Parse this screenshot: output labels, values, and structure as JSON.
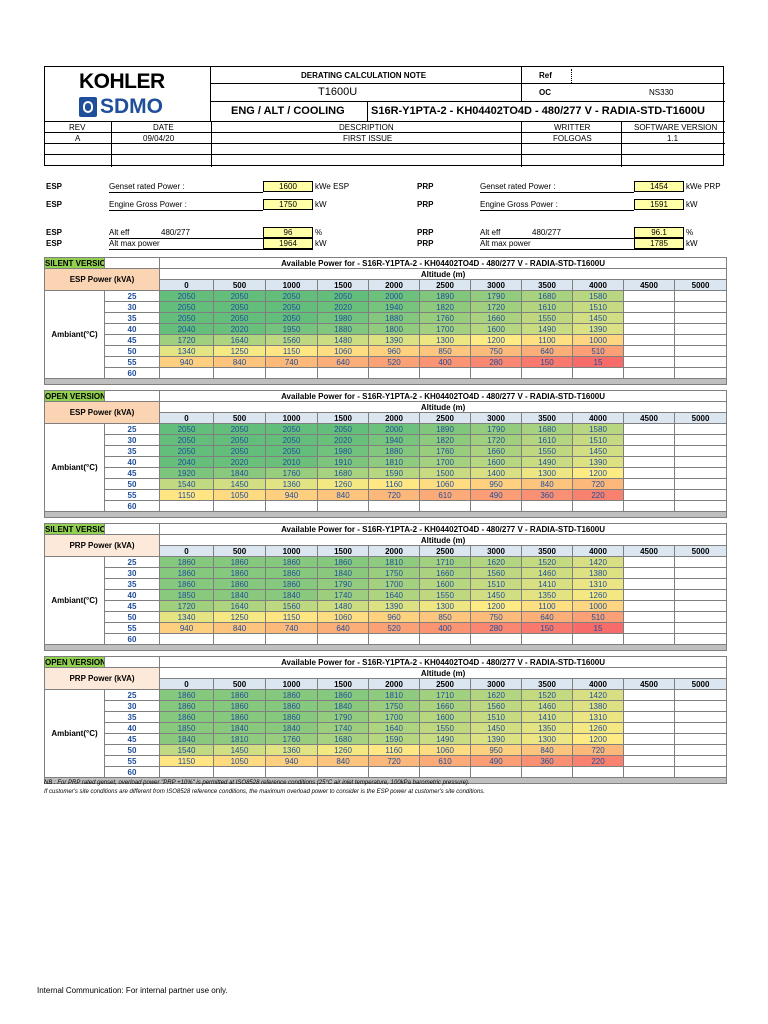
{
  "header": {
    "brand1": "KOHLER",
    "brand2": "SDMO",
    "doc_title": "DERATING CALCULATION NOTE",
    "ref_label": "Ref",
    "model": "T1600U",
    "oc_label": "OC",
    "oc_value": "NS330",
    "config_label": "ENG / ALT / COOLING",
    "config_value": "S16R-Y1PTA-2 - KH04402TO4D - 480/277 V - RADIA-STD-T1600U",
    "rev_label": "REV",
    "date_label": "DATE",
    "desc_label": "DESCRIPTION",
    "writer_label": "WRITTER",
    "sw_label": "SOFTWARE VERSION",
    "rev": "A",
    "date": "09/04/20",
    "desc": "FIRST ISSUE",
    "writer": "FOLGOAS",
    "sw": "1.1"
  },
  "params": {
    "esp": [
      {
        "tag": "ESP",
        "label": "Genset rated Power :",
        "sub": "",
        "value": "1600",
        "unit": "kWe ESP"
      },
      {
        "tag": "ESP",
        "label": "Engine Gross Power :",
        "sub": "",
        "value": "1750",
        "unit": "kW"
      },
      {
        "tag": "ESP",
        "label": "Alt eff",
        "sub": "480/277",
        "value": "96",
        "unit": "%"
      },
      {
        "tag": "ESP",
        "label": "Alt max power",
        "sub": "",
        "value": "1964",
        "unit": "kW"
      }
    ],
    "prp": [
      {
        "tag": "PRP",
        "label": "Genset rated Power :",
        "sub": "",
        "value": "1454",
        "unit": "kWe PRP"
      },
      {
        "tag": "PRP",
        "label": "Engine Gross Power :",
        "sub": "",
        "value": "1591",
        "unit": "kW"
      },
      {
        "tag": "PRP",
        "label": "Alt eff",
        "sub": "480/277",
        "value": "96.1",
        "unit": "%"
      },
      {
        "tag": "PRP",
        "label": "Alt max power",
        "sub": "",
        "value": "1785",
        "unit": "kW"
      }
    ]
  },
  "table_common": {
    "available_title": "Available Power for - S16R-Y1PTA-2 - KH04402TO4D - 480/277 V - RADIA-STD-T1600U",
    "altitude_label": "Altitude (m)",
    "ambient_label": "Ambiant(°C)",
    "altitudes": [
      "0",
      "500",
      "1000",
      "1500",
      "2000",
      "2500",
      "3000",
      "3500",
      "4000",
      "4500",
      "5000"
    ],
    "temps": [
      "25",
      "30",
      "35",
      "40",
      "45",
      "50",
      "55",
      "60"
    ]
  },
  "tables": [
    {
      "version": "SILENT VERSION",
      "power": "ESP Power (kVA)",
      "rows": [
        [
          "2050",
          "2050",
          "2050",
          "2050",
          "2000",
          "1890",
          "1790",
          "1680",
          "1580",
          "",
          ""
        ],
        [
          "2050",
          "2050",
          "2050",
          "2020",
          "1940",
          "1820",
          "1720",
          "1610",
          "1510",
          "",
          ""
        ],
        [
          "2050",
          "2050",
          "2050",
          "1980",
          "1880",
          "1760",
          "1660",
          "1550",
          "1450",
          "",
          ""
        ],
        [
          "2040",
          "2020",
          "1950",
          "1880",
          "1800",
          "1700",
          "1600",
          "1490",
          "1390",
          "",
          ""
        ],
        [
          "1720",
          "1640",
          "1560",
          "1480",
          "1390",
          "1300",
          "1200",
          "1100",
          "1000",
          "",
          ""
        ],
        [
          "1340",
          "1250",
          "1150",
          "1060",
          "960",
          "850",
          "750",
          "640",
          "510",
          "",
          ""
        ],
        [
          "940",
          "840",
          "740",
          "640",
          "520",
          "400",
          "280",
          "150",
          "15",
          "",
          ""
        ],
        [
          "",
          "",
          "",
          "",
          "",
          "",
          "",
          "",
          "",
          "",
          ""
        ]
      ]
    },
    {
      "version": "OPEN VERSION",
      "power": "ESP Power (kVA)",
      "rows": [
        [
          "2050",
          "2050",
          "2050",
          "2050",
          "2000",
          "1890",
          "1790",
          "1680",
          "1580",
          "",
          ""
        ],
        [
          "2050",
          "2050",
          "2050",
          "2020",
          "1940",
          "1820",
          "1720",
          "1610",
          "1510",
          "",
          ""
        ],
        [
          "2050",
          "2050",
          "2050",
          "1980",
          "1880",
          "1760",
          "1660",
          "1550",
          "1450",
          "",
          ""
        ],
        [
          "2040",
          "2020",
          "2010",
          "1910",
          "1810",
          "1700",
          "1600",
          "1490",
          "1390",
          "",
          ""
        ],
        [
          "1920",
          "1840",
          "1760",
          "1680",
          "1590",
          "1500",
          "1400",
          "1300",
          "1200",
          "",
          ""
        ],
        [
          "1540",
          "1450",
          "1360",
          "1260",
          "1160",
          "1060",
          "950",
          "840",
          "720",
          "",
          ""
        ],
        [
          "1150",
          "1050",
          "940",
          "840",
          "720",
          "610",
          "490",
          "360",
          "220",
          "",
          ""
        ],
        [
          "",
          "",
          "",
          "",
          "",
          "",
          "",
          "",
          "",
          "",
          ""
        ]
      ]
    },
    {
      "version": "SILENT VERSION",
      "power": "PRP Power (kVA)",
      "rows": [
        [
          "1860",
          "1860",
          "1860",
          "1860",
          "1810",
          "1710",
          "1620",
          "1520",
          "1420",
          "",
          ""
        ],
        [
          "1860",
          "1860",
          "1860",
          "1840",
          "1750",
          "1660",
          "1560",
          "1460",
          "1380",
          "",
          ""
        ],
        [
          "1860",
          "1860",
          "1860",
          "1790",
          "1700",
          "1600",
          "1510",
          "1410",
          "1310",
          "",
          ""
        ],
        [
          "1850",
          "1840",
          "1840",
          "1740",
          "1640",
          "1550",
          "1450",
          "1350",
          "1260",
          "",
          ""
        ],
        [
          "1720",
          "1640",
          "1560",
          "1480",
          "1390",
          "1300",
          "1200",
          "1100",
          "1000",
          "",
          ""
        ],
        [
          "1340",
          "1250",
          "1150",
          "1060",
          "960",
          "850",
          "750",
          "640",
          "510",
          "",
          ""
        ],
        [
          "940",
          "840",
          "740",
          "640",
          "520",
          "400",
          "280",
          "150",
          "15",
          "",
          ""
        ],
        [
          "",
          "",
          "",
          "",
          "",
          "",
          "",
          "",
          "",
          "",
          ""
        ]
      ]
    },
    {
      "version": "OPEN VERSION",
      "power": "PRP Power (kVA)",
      "rows": [
        [
          "1860",
          "1860",
          "1860",
          "1860",
          "1810",
          "1710",
          "1620",
          "1520",
          "1420",
          "",
          ""
        ],
        [
          "1860",
          "1860",
          "1860",
          "1840",
          "1750",
          "1660",
          "1560",
          "1460",
          "1380",
          "",
          ""
        ],
        [
          "1860",
          "1860",
          "1860",
          "1790",
          "1700",
          "1600",
          "1510",
          "1410",
          "1310",
          "",
          ""
        ],
        [
          "1850",
          "1840",
          "1840",
          "1740",
          "1640",
          "1550",
          "1450",
          "1350",
          "1260",
          "",
          ""
        ],
        [
          "1840",
          "1810",
          "1760",
          "1680",
          "1590",
          "1490",
          "1390",
          "1300",
          "1200",
          "",
          ""
        ],
        [
          "1540",
          "1450",
          "1360",
          "1260",
          "1160",
          "1060",
          "950",
          "840",
          "720",
          "",
          ""
        ],
        [
          "1150",
          "1050",
          "940",
          "840",
          "720",
          "610",
          "490",
          "360",
          "220",
          "",
          ""
        ],
        [
          "",
          "",
          "",
          "",
          "",
          "",
          "",
          "",
          "",
          "",
          ""
        ]
      ]
    }
  ],
  "notes": [
    "NB : For PRP rated genset, overload power \"PRP +10%\" is permitted at ISO8528 reference conditions (25°C air inlet temperature, 100kPa barometric pressure).",
    "If customer's site conditions are different from ISO8528 reference conditions, the maximum overload power to consider is the ESP power at customer's site conditions."
  ],
  "footer": "Internal Communication: For internal partner use only."
}
